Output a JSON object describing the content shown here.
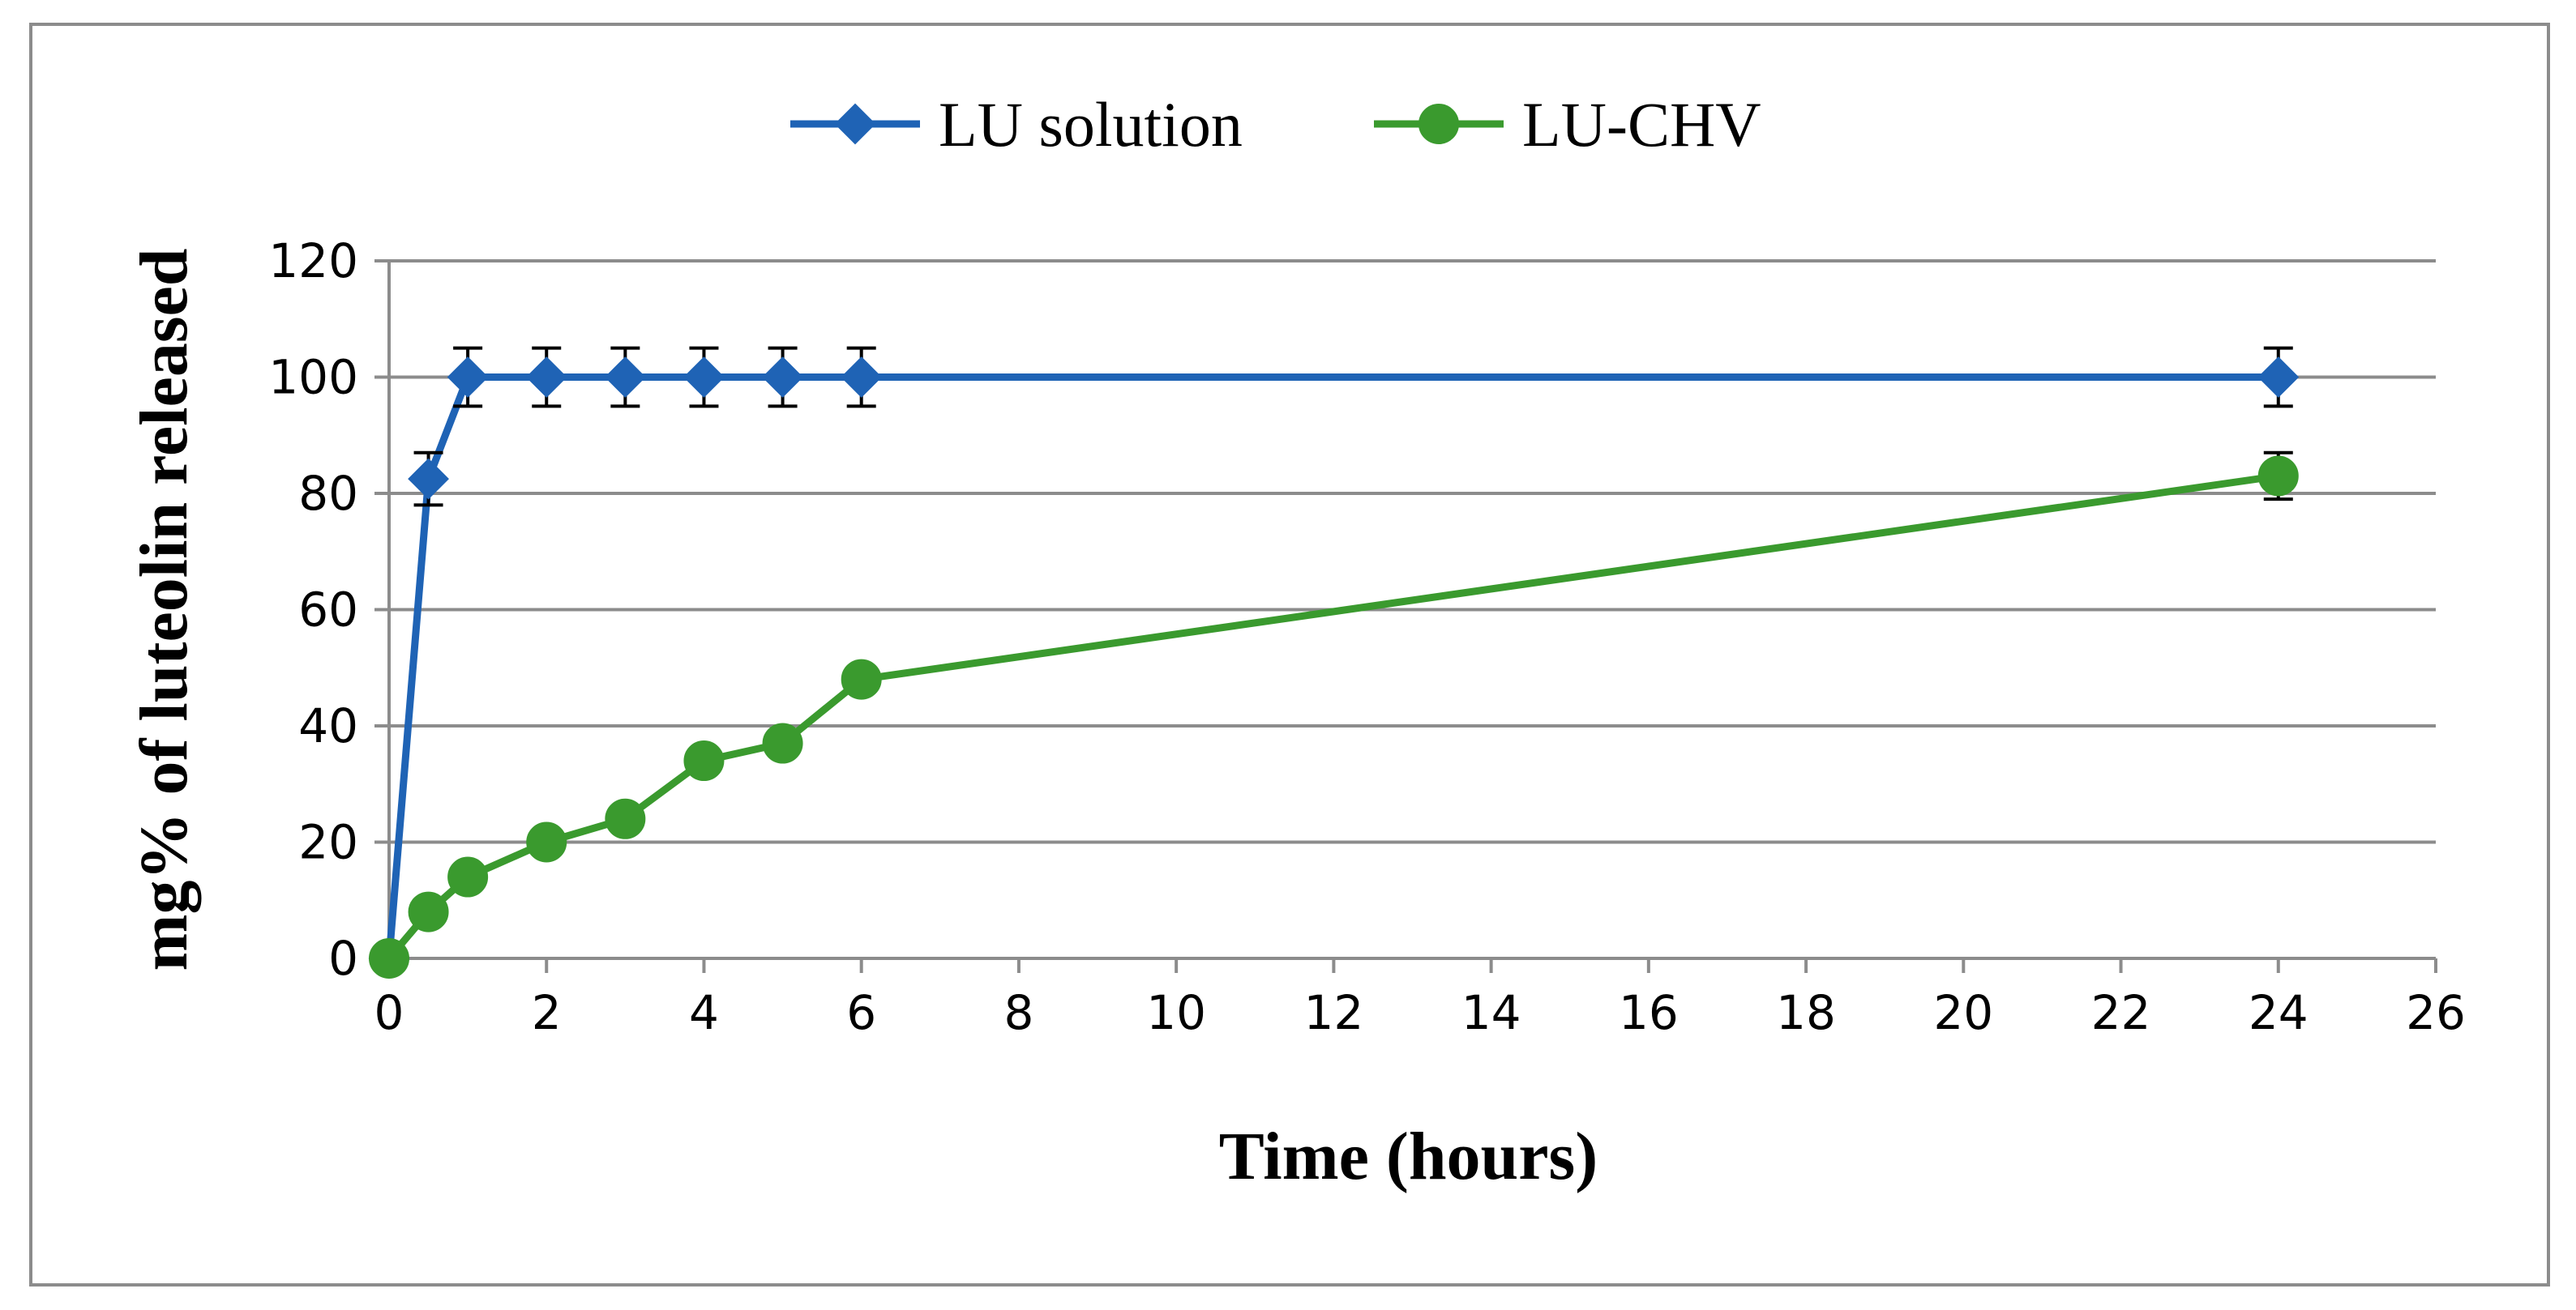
{
  "chart_data": {
    "type": "line",
    "xlabel": "Time (hours)",
    "ylabel": "mg% of  luteolin released",
    "xlim": [
      0,
      26
    ],
    "ylim": [
      0,
      120
    ],
    "xticks": [
      0,
      2,
      4,
      6,
      8,
      10,
      12,
      14,
      16,
      18,
      20,
      22,
      24,
      26
    ],
    "yticks": [
      0,
      20,
      40,
      60,
      80,
      100,
      120
    ],
    "grid": "horizontal",
    "legend": "top-center",
    "series": [
      {
        "name": "LU solution",
        "color": "#1f63b5",
        "marker": "diamond",
        "x": [
          0,
          0.5,
          1,
          2,
          3,
          4,
          5,
          6,
          24
        ],
        "y": [
          0,
          82.5,
          100,
          100,
          100,
          100,
          100,
          100,
          100
        ],
        "error": [
          0,
          4.5,
          5,
          5,
          5,
          5,
          5,
          5,
          5
        ]
      },
      {
        "name": "LU-CHV",
        "color": "#3a9a2e",
        "marker": "circle",
        "x": [
          0,
          0.5,
          1,
          2,
          3,
          4,
          5,
          6,
          24
        ],
        "y": [
          0,
          8,
          14,
          20,
          24,
          34,
          37,
          48,
          83
        ],
        "error": [
          0,
          0,
          0,
          0,
          0,
          0,
          0,
          0,
          4
        ]
      }
    ]
  }
}
